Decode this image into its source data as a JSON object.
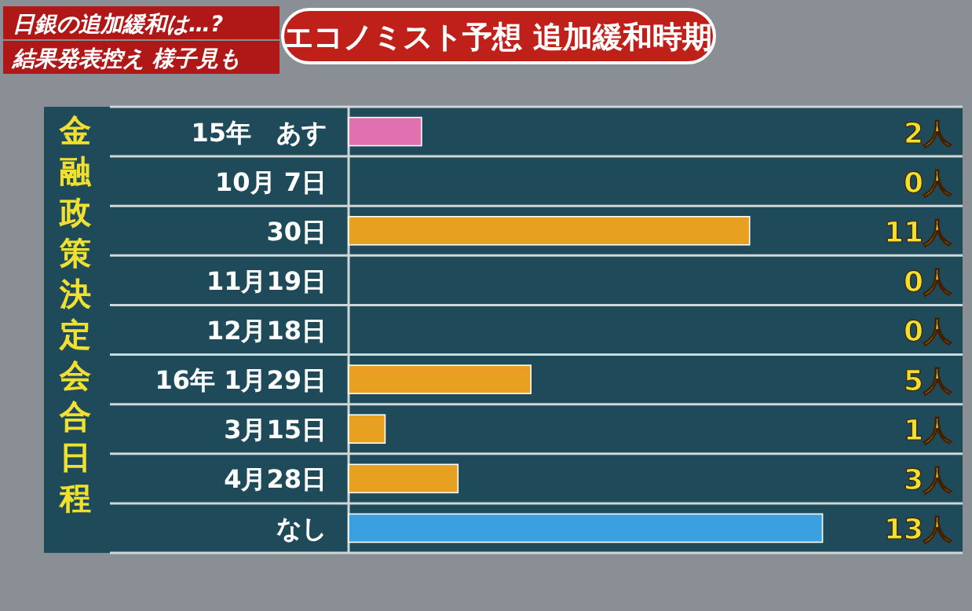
{
  "chart_data": {
    "type": "bar",
    "orientation": "horizontal",
    "title": "エコノミスト予想 追加緩和時期",
    "ylabel": "金融政策決定会合日程",
    "annotations": [
      "日銀の追加緩和は…?",
      "結果発表控え 様子見も"
    ],
    "categories": [
      "15年　あす",
      "10月 7日",
      "30日",
      "11月19日",
      "12月18日",
      "16年 1月29日",
      "3月15日",
      "4月28日",
      "なし"
    ],
    "values": [
      2,
      0,
      11,
      0,
      0,
      5,
      1,
      3,
      13
    ],
    "colors": [
      "#e070b0",
      "#e8a020",
      "#e8a020",
      "#e8a020",
      "#e8a020",
      "#e8a020",
      "#e8a020",
      "#e8a020",
      "#3aa0e0"
    ],
    "value_labels": [
      "2人",
      "0人",
      "11人",
      "0人",
      "0人",
      "5人",
      "1人",
      "3人",
      "13人"
    ]
  }
}
